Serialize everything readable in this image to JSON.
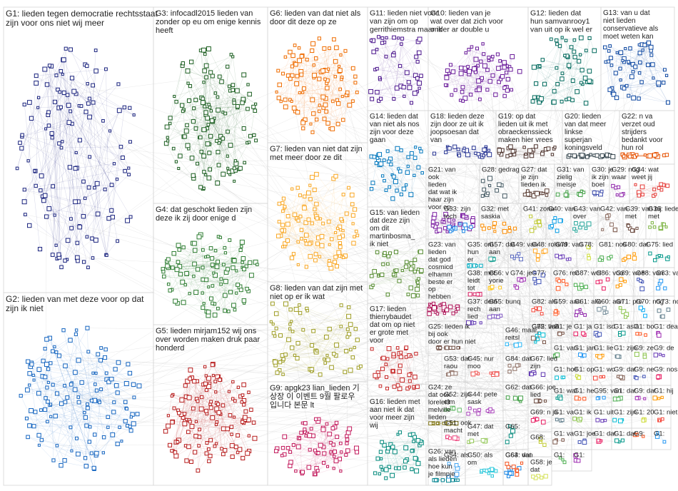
{
  "groups": [
    {
      "id": "G1",
      "lines": [
        "lieden tegen democratie rechtsstaat",
        "zijn voor ons niet wij meer"
      ],
      "color": "#1a237e"
    },
    {
      "id": "G2",
      "lines": [
        "lieden van met deze voor op dat",
        "zijn ik niet"
      ],
      "color": "#1565c0"
    },
    {
      "id": "G3",
      "lines": [
        "infocadl2015 lieden van",
        "zonder op eu om enige kennis",
        "heeft"
      ],
      "color": "#1b5e20"
    },
    {
      "id": "G4",
      "lines": [
        "dat geschokt lieden zijn",
        "deze ik zij door enige d"
      ],
      "color": "#2e7d32"
    },
    {
      "id": "G5",
      "lines": [
        "lieden mirjam152 wij ons",
        "over worden maken druk paar",
        "honderd"
      ],
      "color": "#b71c1c"
    },
    {
      "id": "G6",
      "lines": [
        "lieden van dat niet als",
        "door dit deze op ze"
      ],
      "color": "#ef6c00"
    },
    {
      "id": "G7",
      "lines": [
        "lieden van niet dat zijn",
        "met meer door ze dit"
      ],
      "color": "#f9a825"
    },
    {
      "id": "G8",
      "lines": [
        "lieden van dat zijn met",
        "niet op er ik wat"
      ],
      "color": "#9e9d24"
    },
    {
      "id": "G9",
      "lines": [
        "apgk23 lian_lieden 기",
        "상장 이 이벤트 9월 팔로우",
        "입니다 본문 lt"
      ],
      "color": "#c2185b"
    },
    {
      "id": "G10",
      "lines": [
        "lieden van je",
        "wat over dat zich voor",
        "onder ar double u"
      ],
      "color": "#6a1b9a"
    },
    {
      "id": "G11",
      "lines": [
        "lieden niet voor",
        "van zijn om op",
        "gerrithiemstra maar ik"
      ],
      "color": "#4a148c"
    },
    {
      "id": "G12",
      "lines": [
        "lieden dat",
        "hun samvanrooy1",
        "van uit op ik wel er"
      ],
      "color": "#00695c"
    },
    {
      "id": "G13",
      "lines": [
        "van u dat",
        "niet lieden",
        "conservatieve als",
        "moet weten kan"
      ],
      "color": "#0d47a1"
    },
    {
      "id": "G14",
      "lines": [
        "lieden dat",
        "van niet als nos",
        "zijn voor deze",
        "gaan"
      ],
      "color": "#0277bd"
    },
    {
      "id": "G15",
      "lines": [
        "van lieden",
        "dat deze zijn",
        "om dit",
        "martinbosma_",
        "ik niet"
      ],
      "color": "#558b2f"
    },
    {
      "id": "G16",
      "lines": [
        "lieden met",
        "aan niet ik dat",
        "voor meer zijn",
        "wij"
      ],
      "color": "#00897b"
    },
    {
      "id": "G17",
      "lines": [
        "lieden",
        "thierrybaudet",
        "dat om op niet",
        "er grote met",
        "voor"
      ],
      "color": "#c62828"
    },
    {
      "id": "G18",
      "lines": [
        "lieden deze",
        "zijn door ze uit ik",
        "joopsoesan dat",
        "van"
      ],
      "color": "#283593"
    },
    {
      "id": "G19",
      "lines": [
        "op dat",
        "lieden uit ik met",
        "obraeckenssieck",
        "maken hier vrees"
      ],
      "color": "#4e342e"
    },
    {
      "id": "G20",
      "lines": [
        "lieden",
        "van dat meer",
        "linkse",
        "superjan",
        "koningsveld"
      ],
      "color": "#37474f"
    },
    {
      "id": "G21",
      "lines": [
        "van",
        "ook",
        "lieden",
        "dat wat ik",
        "haar zijn",
        "voor op"
      ],
      "color": "#7b1fa2"
    },
    {
      "id": "G22",
      "lines": [
        "n va",
        "verzet oud",
        "strijders",
        "bedankt voor",
        "hun rol"
      ],
      "color": "#e65100"
    },
    {
      "id": "G23",
      "lines": [
        "van",
        "lieden",
        "dat god",
        "cosmicd",
        "elhamm",
        "beste er",
        "op",
        "hebben"
      ],
      "color": "#ad1457"
    },
    {
      "id": "G24",
      "lines": [
        "ze",
        "dat ook",
        "lorelei3",
        "melville",
        "lieden"
      ],
      "color": "#827717"
    },
    {
      "id": "G25",
      "lines": [
        "lieden ik",
        "bij ook",
        "door er hun niet"
      ],
      "color": "#6d4c41"
    },
    {
      "id": "G26",
      "lines": [
        "van",
        "als lieden",
        "hoe kun",
        "je filmpje"
      ],
      "color": "#00838f"
    },
    {
      "id": "G27",
      "lines": [
        "dat",
        "je zijn",
        "lieden ik"
      ],
      "color": "#5d4037"
    },
    {
      "id": "G28",
      "lines": [
        "gedrag"
      ],
      "color": "#455a64"
    },
    {
      "id": "G29",
      "lines": [
        "nog",
        "waar"
      ],
      "color": "#8e24aa"
    },
    {
      "id": "G30",
      "lines": [
        "je",
        "ik zijn",
        "boel"
      ],
      "color": "#3949ab"
    },
    {
      "id": "G31",
      "lines": [
        "van",
        "zielig",
        "meisje"
      ],
      "color": "#43a047"
    },
    {
      "id": "G32",
      "lines": [
        "met",
        "saskia"
      ],
      "color": "#fb8c00"
    },
    {
      "id": "G33",
      "lines": [
        "zijn",
        "toch"
      ],
      "color": "#1e88e5"
    },
    {
      "id": "G34",
      "lines": [
        "wat",
        "weet jij"
      ],
      "color": "#e53935"
    },
    {
      "id": "G35",
      "lines": [
        "om",
        "hun",
        "er"
      ],
      "color": "#00acc1"
    },
    {
      "id": "G36",
      "lines": [
        "lieden",
        "met"
      ],
      "color": "#7cb342"
    },
    {
      "id": "G37",
      "lines": [
        "dem",
        "rech",
        "lied"
      ],
      "color": "#5e35b1"
    },
    {
      "id": "G38",
      "lines": [
        "met",
        "leidt",
        "tot"
      ],
      "color": "#d81b60"
    },
    {
      "id": "G39",
      "lines": [
        "van bij",
        "met"
      ],
      "color": "#6d4c41"
    },
    {
      "id": "G40",
      "lines": [
        "van"
      ],
      "color": "#039be5"
    },
    {
      "id": "G41",
      "lines": [
        "zona"
      ],
      "color": "#c0ca33"
    },
    {
      "id": "G42",
      "lines": [
        "van"
      ],
      "color": "#8d6e63"
    },
    {
      "id": "G43",
      "lines": [
        "van",
        "over"
      ],
      "color": "#26a69a"
    },
    {
      "id": "G44",
      "lines": [
        "pete",
        "sask"
      ],
      "color": "#ab47bc"
    },
    {
      "id": "G45",
      "lines": [
        "nur",
        "moo"
      ],
      "color": "#ef5350"
    },
    {
      "id": "G46",
      "lines": [
        "maar",
        "reitsl"
      ],
      "color": "#29b6f6"
    },
    {
      "id": "G47",
      "lines": [
        "dat",
        "met"
      ],
      "color": "#9ccc65"
    },
    {
      "id": "G48",
      "lines": [
        "roland"
      ],
      "color": "#ffa726"
    },
    {
      "id": "G49",
      "lines": [
        "van"
      ],
      "color": "#5c6bc0"
    },
    {
      "id": "G50",
      "lines": [
        "als",
        "om"
      ],
      "color": "#26c6da"
    },
    {
      "id": "G51",
      "lines": [
        "ook",
        "macht"
      ],
      "color": "#ec407a"
    },
    {
      "id": "G52",
      "lines": [
        "zijn",
        "elm"
      ],
      "color": "#66bb6a"
    },
    {
      "id": "G53",
      "lines": [
        "dat",
        "raou"
      ],
      "color": "#8d6e63"
    },
    {
      "id": "G54",
      "lines": [
        "als"
      ],
      "color": "#42a5f5"
    },
    {
      "id": "G55",
      "lines": [
        "bunq",
        "aan"
      ],
      "color": "#7e57c2"
    },
    {
      "id": "G56",
      "lines": [
        "v",
        "yorie"
      ],
      "color": "#ffca28"
    },
    {
      "id": "G57",
      "lines": [
        "dat",
        "aan"
      ],
      "color": "#26a69a"
    },
    {
      "id": "G58",
      "lines": [
        "je",
        "dat"
      ],
      "color": "#d4e157"
    },
    {
      "id": "G59",
      "lines": [
        "aan"
      ],
      "color": "#ff7043"
    },
    {
      "id": "G60",
      "lines": [
        "aan"
      ],
      "color": "#78909c"
    },
    {
      "id": "G61",
      "lines": [
        "alle"
      ],
      "color": "#8e24aa"
    },
    {
      "id": "G62",
      "lines": [
        "dat"
      ],
      "color": "#43a047"
    },
    {
      "id": "G63",
      "lines": [
        "dat"
      ],
      "color": "#1e88e5"
    },
    {
      "id": "G64",
      "lines": [
        "van"
      ],
      "color": "#f4511e"
    },
    {
      "id": "G65",
      "lines": [
        ""
      ],
      "color": "#00897b"
    },
    {
      "id": "G66",
      "lines": [
        "joe",
        "lied"
      ],
      "color": "#6d4c41"
    },
    {
      "id": "G67",
      "lines": [
        "lied",
        "zijn"
      ],
      "color": "#5e35b1"
    },
    {
      "id": "G68",
      "lines": [
        ""
      ],
      "color": "#c0ca33"
    },
    {
      "id": "G69",
      "lines": [
        "n ja"
      ],
      "color": "#e91e63"
    },
    {
      "id": "G70",
      "lines": [
        "nog"
      ],
      "color": "#03a9f4"
    },
    {
      "id": "G71",
      "lines": [
        "pro"
      ],
      "color": "#8bc34a"
    },
    {
      "id": "G72",
      "lines": [
        "van"
      ],
      "color": "#795548"
    },
    {
      "id": "G73",
      "lines": [
        "nog"
      ],
      "color": "#607d8b"
    },
    {
      "id": "G74",
      "lines": [
        "je"
      ],
      "color": "#9c27b0"
    },
    {
      "id": "G75",
      "lines": [
        "lied"
      ],
      "color": "#009688"
    },
    {
      "id": "G76",
      "lines": [
        "rec"
      ],
      "color": "#ff5722"
    },
    {
      "id": "G77",
      "lines": [
        ""
      ],
      "color": "#3f51b5"
    },
    {
      "id": "G78",
      "lines": [
        ""
      ],
      "color": "#cddc39"
    },
    {
      "id": "G79",
      "lines": [
        "van"
      ],
      "color": "#673ab7"
    },
    {
      "id": "G80",
      "lines": [
        "dat"
      ],
      "color": "#ff9800"
    },
    {
      "id": "G81",
      "lines": [
        "nos"
      ],
      "color": "#4caf50"
    },
    {
      "id": "G82",
      "lines": [
        "als"
      ],
      "color": "#f44336"
    },
    {
      "id": "G83",
      "lines": [
        "van"
      ],
      "color": "#2196f3"
    },
    {
      "id": "G84",
      "lines": [
        "dat"
      ],
      "color": "#8d6e63"
    },
    {
      "id": "G85",
      "lines": [
        "lied"
      ],
      "color": "#00bcd4"
    },
    {
      "id": "G86",
      "lines": [
        "voo"
      ],
      "color": "#e91e63"
    },
    {
      "id": "G87",
      "lines": [
        "wel"
      ],
      "color": "#4caf50"
    },
    {
      "id": "G88",
      "lines": [
        "van"
      ],
      "color": "#3f51b5"
    },
    {
      "id": "G89",
      "lines": [
        "wee"
      ],
      "color": "#ff9800"
    }
  ],
  "small_cells": [
    {
      "id": "G1",
      "lines": [
        "je"
      ],
      "color": "#795548"
    },
    {
      "id": "G1",
      "lines": [
        "ja"
      ],
      "color": "#e91e63"
    },
    {
      "id": "G1",
      "lines": [
        "isd"
      ],
      "color": "#3f51b5"
    },
    {
      "id": "G1",
      "lines": [
        "asia"
      ],
      "color": "#009688"
    },
    {
      "id": "G1",
      "lines": [
        "bo"
      ],
      "color": "#ff5722"
    },
    {
      "id": "G1",
      "lines": [
        "deal"
      ],
      "color": "#9c27b0"
    },
    {
      "id": "G1",
      "lines": [
        "van"
      ],
      "color": "#4caf50"
    },
    {
      "id": "G1",
      "lines": [
        "jan"
      ],
      "color": "#2196f3"
    },
    {
      "id": "G1",
      "lines": [
        "lie"
      ],
      "color": "#ff9800"
    },
    {
      "id": "G1",
      "lines": [
        "zijn"
      ],
      "color": "#607d8b"
    },
    {
      "id": "G9",
      "lines": [
        "ze"
      ],
      "color": "#8bc34a"
    },
    {
      "id": "G9",
      "lines": [
        "de"
      ],
      "color": "#673ab7"
    },
    {
      "id": "G1",
      "lines": [
        "hoe"
      ],
      "color": "#00bcd4"
    },
    {
      "id": "G1",
      "lines": [
        "op"
      ],
      "color": "#cddc39"
    },
    {
      "id": "G1",
      "lines": [
        "wo"
      ],
      "color": "#f44336"
    },
    {
      "id": "G9",
      "lines": [
        "dat"
      ],
      "color": "#795548"
    },
    {
      "id": "G9",
      "lines": [
        "ne"
      ],
      "color": "#3f51b5"
    },
    {
      "id": "G9",
      "lines": [
        "nos"
      ],
      "color": "#e91e63"
    },
    {
      "id": "G1",
      "lines": [
        "wat"
      ],
      "color": "#009688"
    },
    {
      "id": "G1",
      "lines": [
        "he"
      ],
      "color": "#ff5722"
    },
    {
      "id": "G95",
      "lines": [
        "van"
      ],
      "color": "#2196f3"
    },
    {
      "id": "G1",
      "lines": [
        "dat"
      ],
      "color": "#4caf50"
    },
    {
      "id": "G9",
      "lines": [
        "dat"
      ],
      "color": "#9c27b0"
    },
    {
      "id": "G1",
      "lines": [
        "hij"
      ],
      "color": "#ff9800"
    },
    {
      "id": "G1",
      "lines": [
        "va"
      ],
      "color": "#607d8b"
    },
    {
      "id": "G1",
      "lines": [
        "ik"
      ],
      "color": "#8bc34a"
    },
    {
      "id": "G1",
      "lines": [
        "uit"
      ],
      "color": "#673ab7"
    },
    {
      "id": "G1",
      "lines": [
        "zijn"
      ],
      "color": "#00bcd4"
    },
    {
      "id": "G1",
      "lines": [
        "20"
      ],
      "color": "#cddc39"
    },
    {
      "id": "G1",
      "lines": [
        "niet"
      ],
      "color": "#f44336"
    },
    {
      "id": "G1",
      "lines": [
        "va"
      ],
      "color": "#795548"
    },
    {
      "id": "G1",
      "lines": [
        "joe"
      ],
      "color": "#3f51b5"
    },
    {
      "id": "G1",
      "lines": [
        "dat"
      ],
      "color": "#e91e63"
    },
    {
      "id": "G1",
      "lines": [
        "dat"
      ],
      "color": "#009688"
    },
    {
      "id": "G9",
      "lines": [
        ""
      ],
      "color": "#ff5722"
    },
    {
      "id": "G1",
      "lines": [
        ""
      ],
      "color": "#2196f3"
    },
    {
      "id": "G1",
      "lines": [
        ""
      ],
      "color": "#4caf50"
    },
    {
      "id": "G1",
      "lines": [
        ""
      ],
      "color": "#9c27b0"
    }
  ]
}
